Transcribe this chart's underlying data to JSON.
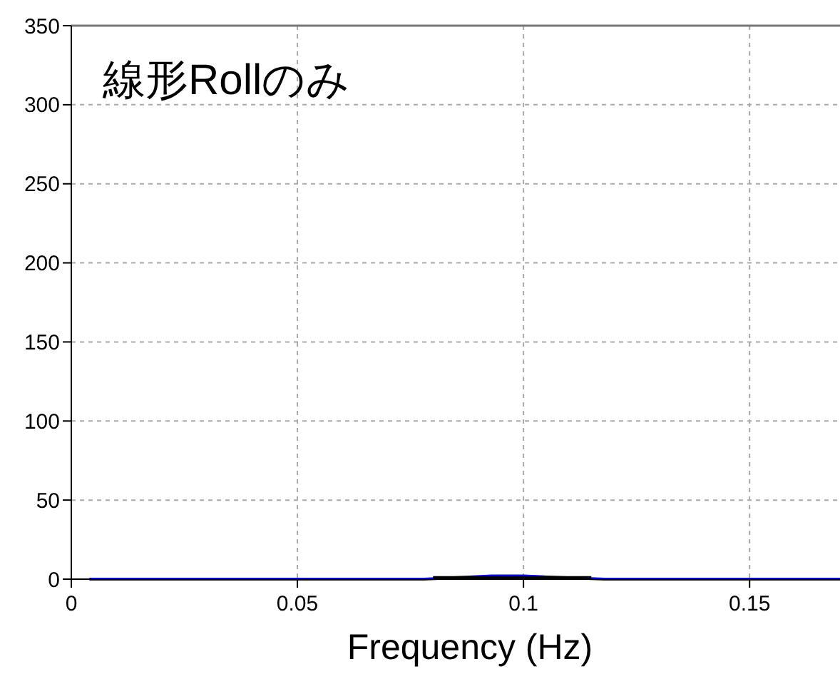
{
  "chart_data": {
    "type": "line",
    "title": "線形Rollのみ",
    "xlabel": "Frequency (Hz)",
    "xlim": [
      0,
      0.17
    ],
    "xticks": [
      0,
      0.05,
      0.1,
      0.15
    ],
    "ylim": [
      0,
      350
    ],
    "yticks": [
      0,
      50,
      100,
      150,
      200,
      250,
      300,
      350
    ],
    "grid": true,
    "line_style": "solid",
    "marker": "none",
    "series": [
      {
        "color": "#0000ff",
        "x": [
          0.004,
          0.04,
          0.078,
          0.093,
          0.1,
          0.118,
          0.14,
          0.17
        ],
        "values": [
          0,
          0,
          0,
          2,
          2,
          0,
          0,
          0
        ]
      },
      {
        "color": "#000000",
        "x": [
          0.08,
          0.115
        ],
        "values": [
          1,
          1
        ]
      }
    ]
  }
}
